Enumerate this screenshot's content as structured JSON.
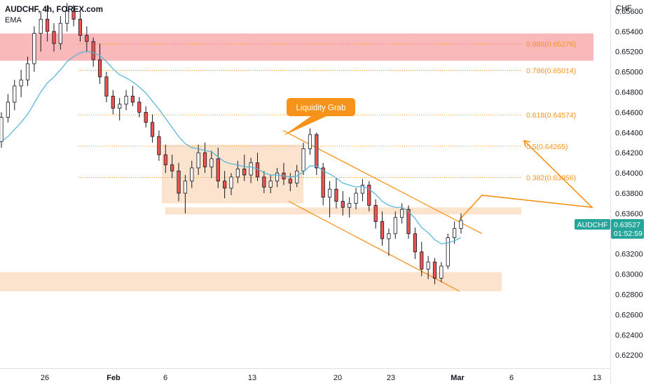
{
  "header": {
    "symbol_line": "AUDCHF, 4h, FOREX.com",
    "indicator": "EMA",
    "currency": "CHF"
  },
  "price_badge": {
    "symbol": "AUDCHF",
    "price": "0.63527",
    "countdown": "01:52:59"
  },
  "colors": {
    "bull": "#26a69a",
    "bear": "#ef5350",
    "candle": "#131722",
    "ema": "#4fb3d9",
    "drawing": "#f7931a",
    "supply_zone": "#f7a1a4",
    "demand_zone": "#fad0ad",
    "badge": "#26a69a"
  },
  "annotation": {
    "callout": "Liquidity Grab"
  },
  "chart_data": {
    "type": "candlestick",
    "title": "AUDCHF, 4h, FOREX.com",
    "ylabel": "CHF",
    "ylim": [
      0.6207,
      0.6571
    ],
    "yticks": [
      "0.65600",
      "0.65400",
      "0.65200",
      "0.65000",
      "0.64800",
      "0.64600",
      "0.64400",
      "0.64200",
      "0.64000",
      "0.63800",
      "0.63600",
      "0.63400",
      "0.63200",
      "0.63000",
      "0.62800",
      "0.62600",
      "0.62400",
      "0.62200"
    ],
    "xticks": [
      "26",
      "Feb",
      "6",
      "13",
      "20",
      "23",
      "Mar",
      "6",
      "13"
    ],
    "x_domain": [
      "Jan 23",
      "Mar 15"
    ],
    "current_price": 0.63527,
    "fib_levels": [
      {
        "ratio": "0.886",
        "label": "0.886(0.65276)",
        "value": 0.65276
      },
      {
        "ratio": "0.786",
        "label": "0.786(0.65014)",
        "value": 0.65014
      },
      {
        "ratio": "0.618",
        "label": "0.618(0.64574)",
        "value": 0.64574
      },
      {
        "ratio": "0.5",
        "label": "0.5(0.64265)",
        "value": 0.64265
      },
      {
        "ratio": "0.382",
        "label": "0.382(0.63956)",
        "value": 0.63956
      }
    ],
    "zones": [
      {
        "name": "supply",
        "from": "Jan 23",
        "to": "Mar 3",
        "low": 0.6511,
        "high": 0.6538
      },
      {
        "name": "range-box",
        "from": "Feb 6",
        "to": "Feb 16",
        "low": 0.637,
        "high": 0.6428
      },
      {
        "name": "support",
        "from": "Feb 6",
        "to": "Mar 3",
        "low": 0.6359,
        "high": 0.6366
      },
      {
        "name": "demand",
        "from": "Jan 23",
        "to": "Feb 29",
        "low": 0.6283,
        "high": 0.6302
      }
    ],
    "channel": {
      "upper": [
        [
          "Feb 15",
          0.6442
        ],
        [
          "Mar 2",
          0.634
        ]
      ],
      "lower": [
        [
          "Feb 16",
          0.6372
        ],
        [
          "Mar 1",
          0.6283
        ]
      ]
    },
    "projection": [
      [
        "Mar 1",
        0.6354
      ],
      [
        "Mar 2",
        0.6378
      ],
      [
        "Mar 3",
        0.6366
      ],
      [
        "Mar 4",
        0.6432
      ]
    ],
    "series": [
      {
        "name": "AUDCHF",
        "ohlc": [
          [
            0.6431,
            0.646,
            0.6425,
            0.6455
          ],
          [
            0.6455,
            0.6478,
            0.645,
            0.647
          ],
          [
            0.647,
            0.6492,
            0.6462,
            0.6486
          ],
          [
            0.6486,
            0.6502,
            0.6475,
            0.6492
          ],
          [
            0.6492,
            0.6515,
            0.6486,
            0.6508
          ],
          [
            0.6508,
            0.6545,
            0.65,
            0.6538
          ],
          [
            0.6538,
            0.656,
            0.652,
            0.6552
          ],
          [
            0.6552,
            0.6566,
            0.653,
            0.654
          ],
          [
            0.654,
            0.6548,
            0.652,
            0.6528
          ],
          [
            0.6528,
            0.6555,
            0.6522,
            0.6548
          ],
          [
            0.6548,
            0.6568,
            0.654,
            0.656
          ],
          [
            0.656,
            0.6566,
            0.6545,
            0.6552
          ],
          [
            0.6552,
            0.656,
            0.653,
            0.6536
          ],
          [
            0.6536,
            0.6545,
            0.652,
            0.653
          ],
          [
            0.653,
            0.6534,
            0.6505,
            0.6512
          ],
          [
            0.6512,
            0.6528,
            0.6488,
            0.6495
          ],
          [
            0.6495,
            0.65,
            0.647,
            0.6476
          ],
          [
            0.6476,
            0.6482,
            0.6458,
            0.6464
          ],
          [
            0.6464,
            0.6474,
            0.6452,
            0.6468
          ],
          [
            0.6468,
            0.6482,
            0.6462,
            0.6476
          ],
          [
            0.6476,
            0.6486,
            0.6466,
            0.647
          ],
          [
            0.647,
            0.6475,
            0.6455,
            0.646
          ],
          [
            0.646,
            0.6466,
            0.6445,
            0.645
          ],
          [
            0.645,
            0.6458,
            0.643,
            0.6436
          ],
          [
            0.6436,
            0.6442,
            0.6412,
            0.6418
          ],
          [
            0.6418,
            0.6428,
            0.64,
            0.6408
          ],
          [
            0.6408,
            0.6418,
            0.6395,
            0.6402
          ],
          [
            0.6402,
            0.641,
            0.6372,
            0.638
          ],
          [
            0.638,
            0.6398,
            0.636,
            0.6392
          ],
          [
            0.6392,
            0.6412,
            0.6385,
            0.6405
          ],
          [
            0.6405,
            0.6428,
            0.6398,
            0.642
          ],
          [
            0.642,
            0.643,
            0.64,
            0.6406
          ],
          [
            0.6406,
            0.6422,
            0.6395,
            0.6414
          ],
          [
            0.6414,
            0.6425,
            0.6385,
            0.6392
          ],
          [
            0.6392,
            0.6402,
            0.6375,
            0.6385
          ],
          [
            0.6385,
            0.64,
            0.6378,
            0.6396
          ],
          [
            0.6396,
            0.6412,
            0.639,
            0.6404
          ],
          [
            0.6404,
            0.6418,
            0.6392,
            0.6398
          ],
          [
            0.6398,
            0.6415,
            0.639,
            0.641
          ],
          [
            0.641,
            0.642,
            0.6392,
            0.6396
          ],
          [
            0.6396,
            0.6402,
            0.638,
            0.6386
          ],
          [
            0.6386,
            0.6398,
            0.638,
            0.6392
          ],
          [
            0.6392,
            0.6405,
            0.6386,
            0.64
          ],
          [
            0.64,
            0.641,
            0.6388,
            0.6394
          ],
          [
            0.6394,
            0.64,
            0.6382,
            0.639
          ],
          [
            0.639,
            0.6408,
            0.6386,
            0.6402
          ],
          [
            0.6402,
            0.643,
            0.6398,
            0.6424
          ],
          [
            0.6424,
            0.6444,
            0.6418,
            0.6438
          ],
          [
            0.6438,
            0.644,
            0.6398,
            0.6405
          ],
          [
            0.6405,
            0.641,
            0.6368,
            0.6376
          ],
          [
            0.6376,
            0.6392,
            0.6356,
            0.6384
          ],
          [
            0.6384,
            0.6395,
            0.6365,
            0.6372
          ],
          [
            0.6372,
            0.6382,
            0.6358,
            0.6366
          ],
          [
            0.6366,
            0.6376,
            0.6356,
            0.637
          ],
          [
            0.637,
            0.6385,
            0.6364,
            0.638
          ],
          [
            0.638,
            0.6394,
            0.6372,
            0.6388
          ],
          [
            0.6388,
            0.6392,
            0.6362,
            0.6368
          ],
          [
            0.6368,
            0.6374,
            0.6345,
            0.6352
          ],
          [
            0.6352,
            0.6362,
            0.6328,
            0.6335
          ],
          [
            0.6335,
            0.6345,
            0.6318,
            0.634
          ],
          [
            0.634,
            0.6362,
            0.6335,
            0.6356
          ],
          [
            0.6356,
            0.637,
            0.635,
            0.6364
          ],
          [
            0.6364,
            0.6368,
            0.6335,
            0.634
          ],
          [
            0.634,
            0.6346,
            0.6315,
            0.6322
          ],
          [
            0.6322,
            0.6332,
            0.6298,
            0.6305
          ],
          [
            0.6305,
            0.6318,
            0.6295,
            0.6312
          ],
          [
            0.6312,
            0.6316,
            0.629,
            0.6296
          ],
          [
            0.6296,
            0.6312,
            0.6292,
            0.6308
          ],
          [
            0.6308,
            0.634,
            0.6305,
            0.6336
          ],
          [
            0.6336,
            0.6352,
            0.633,
            0.6345
          ],
          [
            0.6345,
            0.636,
            0.634,
            0.6353
          ]
        ],
        "ema": [
          0.6431,
          0.6436,
          0.6443,
          0.645,
          0.6458,
          0.6469,
          0.648,
          0.6489,
          0.6495,
          0.6502,
          0.651,
          0.6515,
          0.6519,
          0.652,
          0.6519,
          0.6516,
          0.651,
          0.6503,
          0.6497,
          0.6494,
          0.649,
          0.6485,
          0.6479,
          0.6471,
          0.6463,
          0.6454,
          0.6445,
          0.6436,
          0.6429,
          0.6425,
          0.6424,
          0.6422,
          0.6421,
          0.6416,
          0.6411,
          0.6409,
          0.6408,
          0.6406,
          0.6406,
          0.6404,
          0.64,
          0.6398,
          0.6398,
          0.6397,
          0.6396,
          0.6397,
          0.6401,
          0.6407,
          0.6407,
          0.6402,
          0.6399,
          0.6395,
          0.639,
          0.6388,
          0.6386,
          0.6387,
          0.6384,
          0.6379,
          0.6372,
          0.6368,
          0.6366,
          0.6366,
          0.6362,
          0.6355,
          0.6346,
          0.6341,
          0.6334,
          0.633,
          0.6331,
          0.6333,
          0.6336
        ]
      }
    ]
  }
}
